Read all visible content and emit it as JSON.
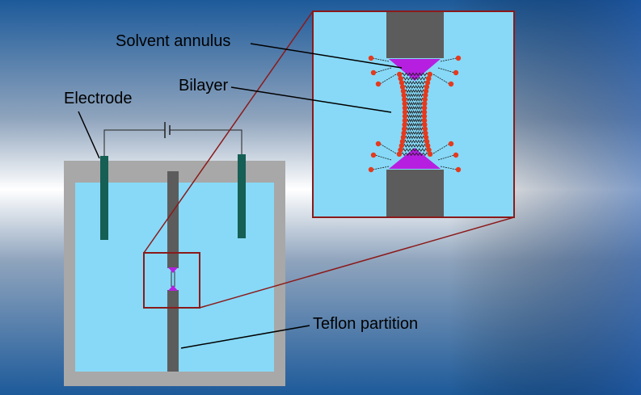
{
  "labels": {
    "solvent_annulus": "Solvent annulus",
    "bilayer": "Bilayer",
    "electrode": "Electrode",
    "teflon_partition": "Teflon partition"
  },
  "colors": {
    "water": "#87d9f7",
    "container_wall": "#a8a8a8",
    "partition": "#5c5c5c",
    "electrode": "#155f55",
    "frame": "#8b1a1a",
    "solvent": "#b61fe0",
    "lipid_head": "#e53a1d"
  }
}
